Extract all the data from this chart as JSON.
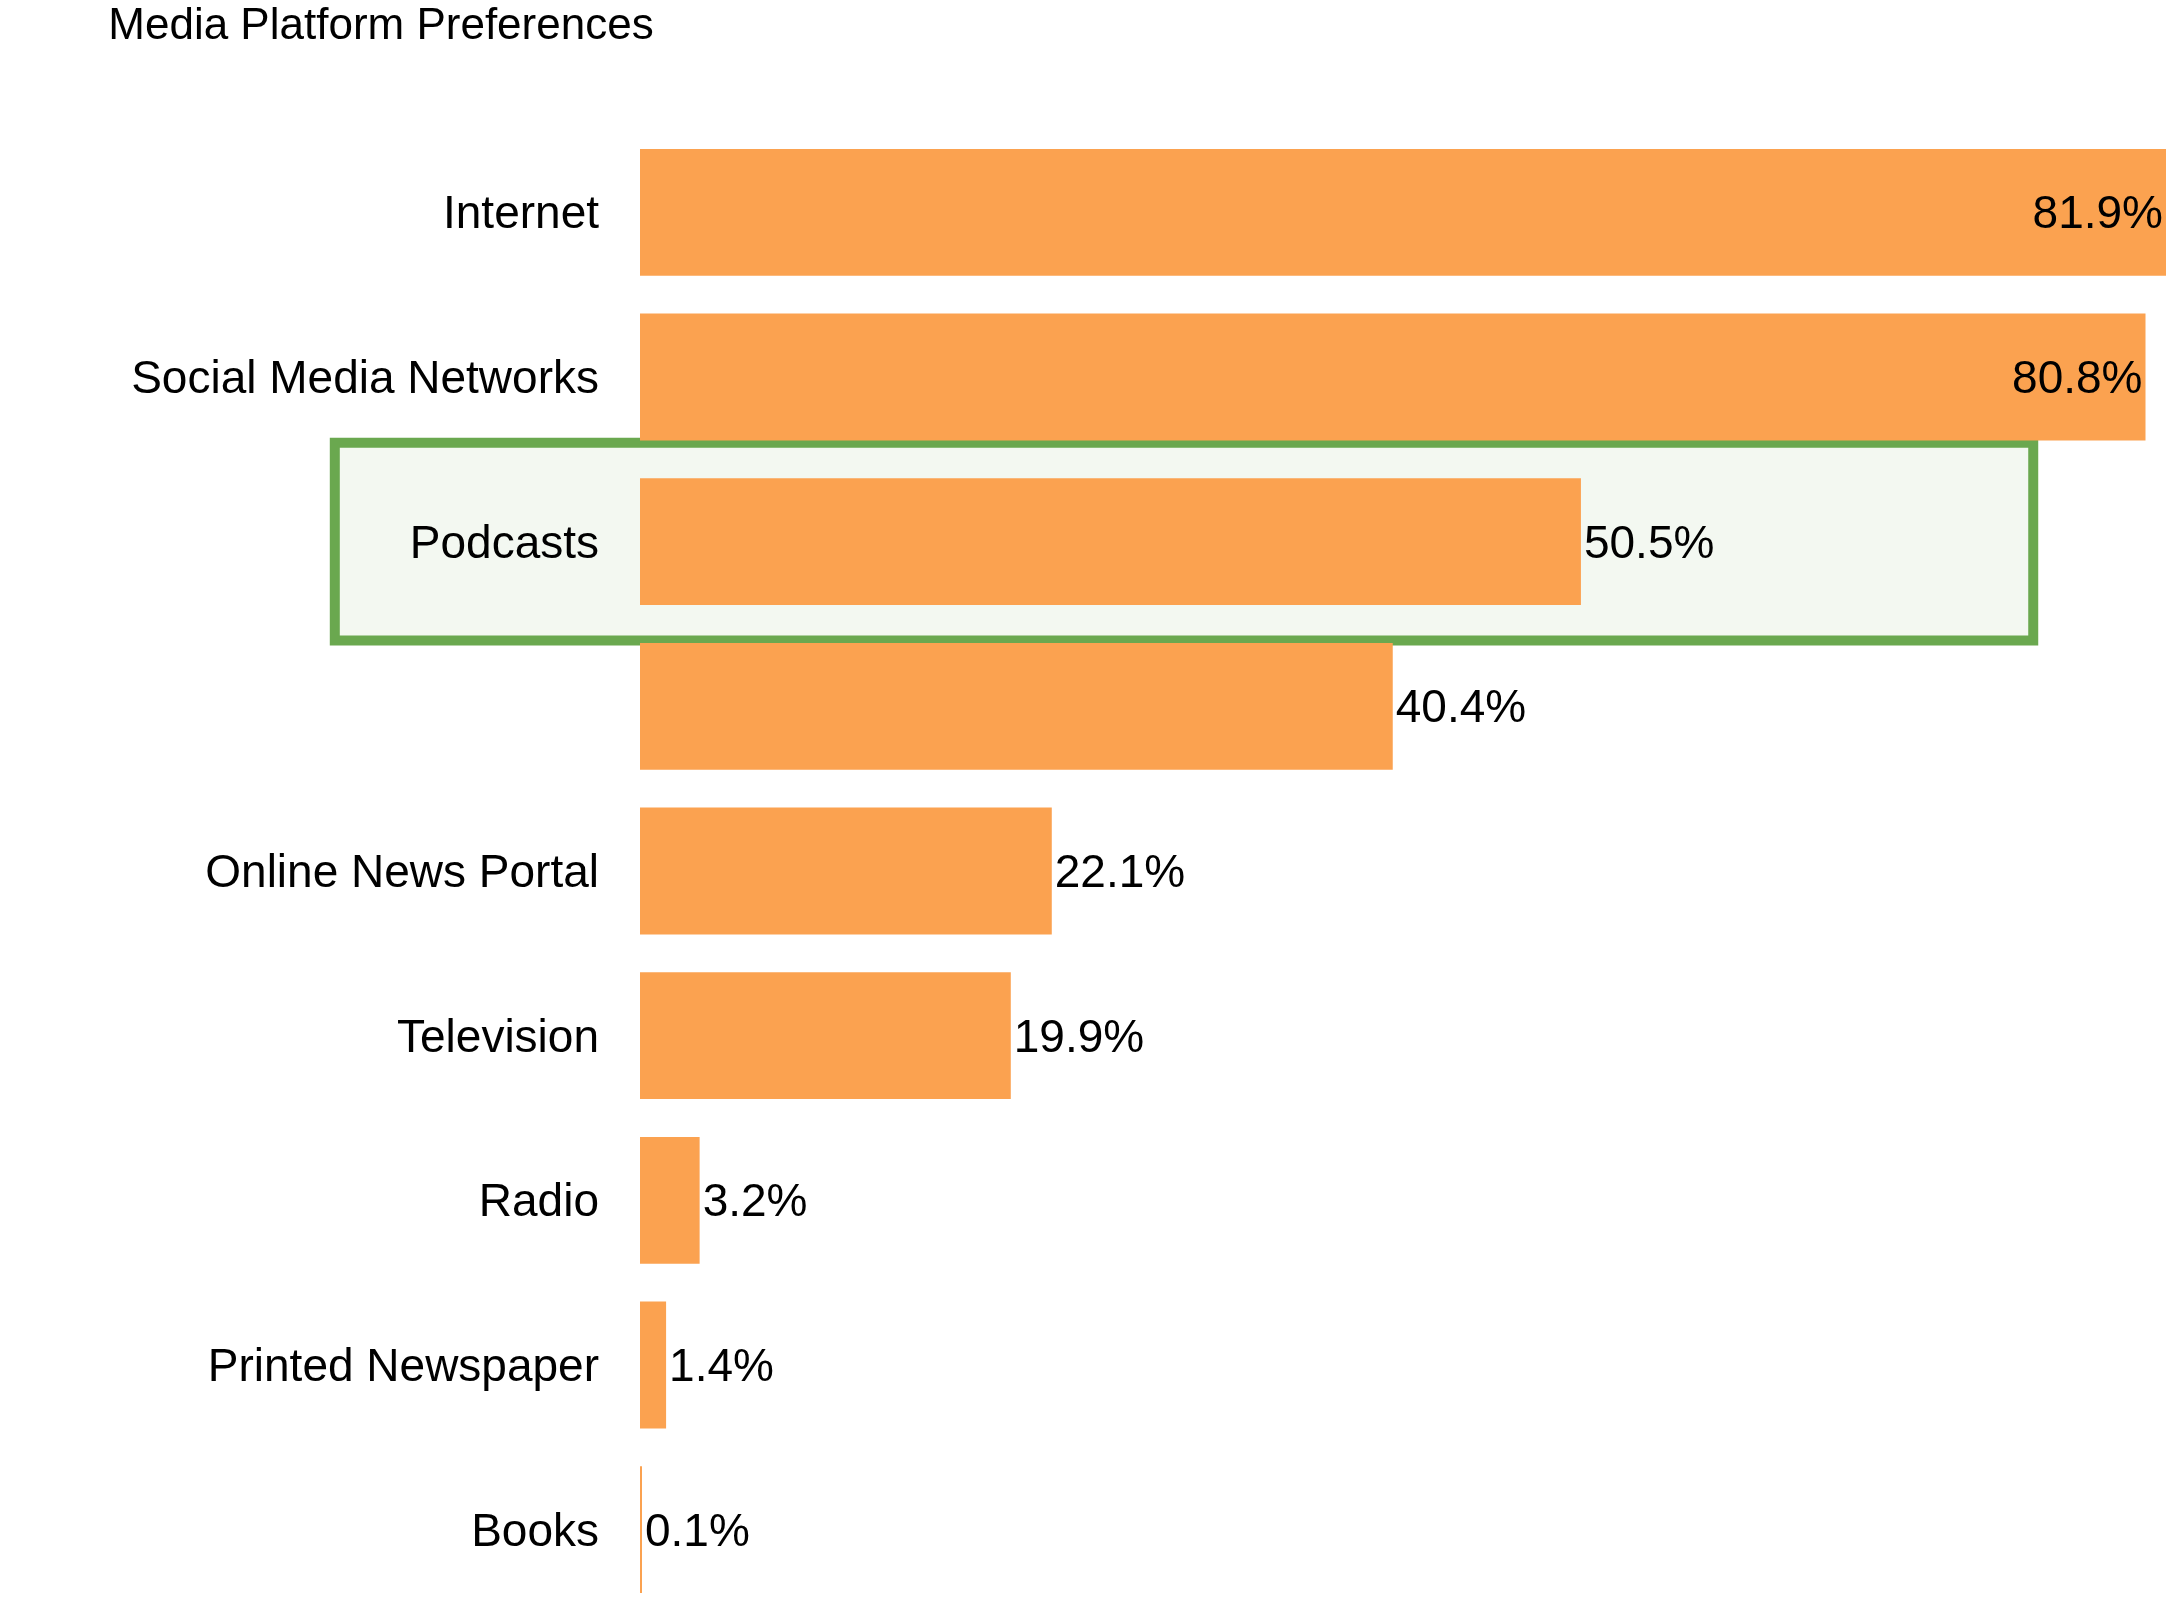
{
  "chart_data": {
    "type": "bar",
    "orientation": "horizontal",
    "title": "Media Platform Preferences",
    "categories": [
      "Internet",
      "Social Media Networks",
      "Podcasts",
      null,
      "Online News Portal",
      "Television",
      "Radio",
      "Printed Newspaper",
      "Books"
    ],
    "values": [
      81.9,
      80.8,
      50.5,
      40.4,
      22.1,
      19.9,
      3.2,
      1.4,
      0.1
    ],
    "value_labels": [
      "81.9%",
      "80.8%",
      "50.5%",
      "40.4%",
      "22.1%",
      "19.9%",
      "3.2%",
      "1.4%",
      "0.1%"
    ],
    "color": "#fba250",
    "bands": [
      {
        "axis": "y",
        "from": "Podcasts",
        "to": "Podcasts",
        "color": "#6aa84f"
      }
    ]
  }
}
